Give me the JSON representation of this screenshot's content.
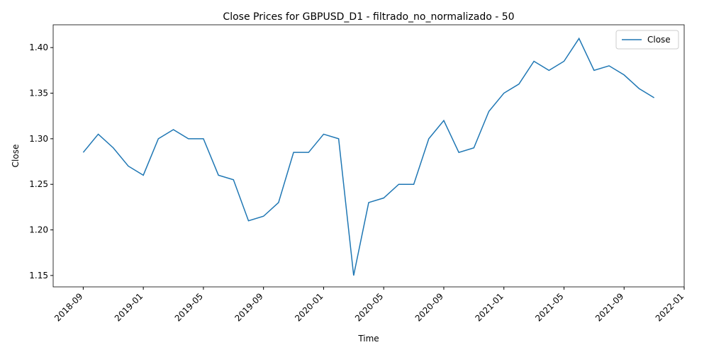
{
  "chart_data": {
    "type": "line",
    "title": "Close Prices for GBPUSD_D1 - filtrado_no_normalizado - 50",
    "xlabel": "Time",
    "ylabel": "Close",
    "x": [
      "2018-09",
      "2018-10",
      "2018-11",
      "2018-12",
      "2019-01",
      "2019-02",
      "2019-03",
      "2019-04",
      "2019-05",
      "2019-06",
      "2019-07",
      "2019-08",
      "2019-09",
      "2019-10",
      "2019-11",
      "2019-12",
      "2020-01",
      "2020-02",
      "2020-03",
      "2020-04",
      "2020-05",
      "2020-06",
      "2020-07",
      "2020-08",
      "2020-09",
      "2020-10",
      "2020-11",
      "2020-12",
      "2021-01",
      "2021-02",
      "2021-03",
      "2021-04",
      "2021-05",
      "2021-06",
      "2021-07",
      "2021-08",
      "2021-09",
      "2021-10",
      "2021-11"
    ],
    "series": [
      {
        "name": "Close",
        "color": "#1f77b4",
        "values": [
          1.285,
          1.305,
          1.29,
          1.27,
          1.26,
          1.3,
          1.31,
          1.3,
          1.3,
          1.26,
          1.255,
          1.21,
          1.215,
          1.23,
          1.285,
          1.285,
          1.305,
          1.3,
          1.15,
          1.23,
          1.235,
          1.25,
          1.25,
          1.3,
          1.32,
          1.285,
          1.29,
          1.33,
          1.35,
          1.36,
          1.385,
          1.375,
          1.385,
          1.41,
          1.375,
          1.38,
          1.37,
          1.355,
          1.345
        ]
      }
    ],
    "xlim": [
      "2018-07",
      "2022-01"
    ],
    "xticks": [
      "2018-09",
      "2019-01",
      "2019-05",
      "2019-09",
      "2020-01",
      "2020-05",
      "2020-09",
      "2021-01",
      "2021-05",
      "2021-09",
      "2022-01"
    ],
    "ylim": [
      1.1375,
      1.425
    ],
    "yticks": [
      1.15,
      {
        "value": 1.2,
        "label": "1.20"
      },
      1.25,
      {
        "value": 1.3,
        "label": "1.30"
      },
      1.35,
      {
        "value": 1.4,
        "label": "1.40"
      }
    ],
    "grid": false,
    "legend": "upper right"
  }
}
